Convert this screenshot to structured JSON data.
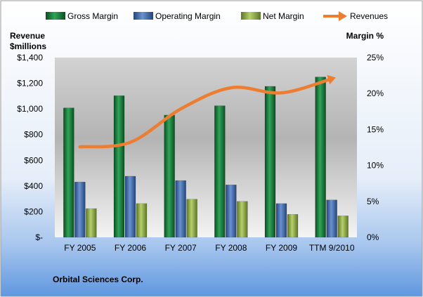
{
  "chart_data": {
    "type": "bar",
    "title": "",
    "company": "Orbital Sciences Corp.",
    "left_axis_label": [
      "Revenue",
      "$millions"
    ],
    "right_axis_label": "Margin %",
    "categories": [
      "FY 2005",
      "FY 2006",
      "FY 2007",
      "FY 2008",
      "FY 2009",
      "TTM 9/2010"
    ],
    "left_ticks": [
      "$-",
      "$200",
      "$400",
      "$600",
      "$800",
      "$1,000",
      "$1,200",
      "$1,400"
    ],
    "right_ticks": [
      "0%",
      "5%",
      "10%",
      "15%",
      "20%",
      "25%"
    ],
    "ylim_left": [
      0,
      1400
    ],
    "ylim_right": [
      0,
      25
    ],
    "legend_position": "top",
    "grid": false,
    "series": [
      {
        "name": "Gross Margin",
        "type": "bar",
        "axis": "right",
        "color": "#1a7a3a",
        "values": [
          18.0,
          19.7,
          17.0,
          18.3,
          21.0,
          22.3
        ]
      },
      {
        "name": "Operating Margin",
        "type": "bar",
        "axis": "right",
        "color": "#3f67a8",
        "values": [
          7.7,
          8.5,
          7.9,
          7.3,
          4.7,
          5.2
        ]
      },
      {
        "name": "Net Margin",
        "type": "bar",
        "axis": "right",
        "color": "#8fab44",
        "values": [
          4.0,
          4.7,
          5.3,
          5.0,
          3.2,
          3.0
        ]
      },
      {
        "name": "Revenues",
        "type": "line",
        "axis": "left",
        "color": "#ed7d31",
        "values": [
          705,
          740,
          1000,
          1165,
          1125,
          1235
        ]
      }
    ]
  }
}
